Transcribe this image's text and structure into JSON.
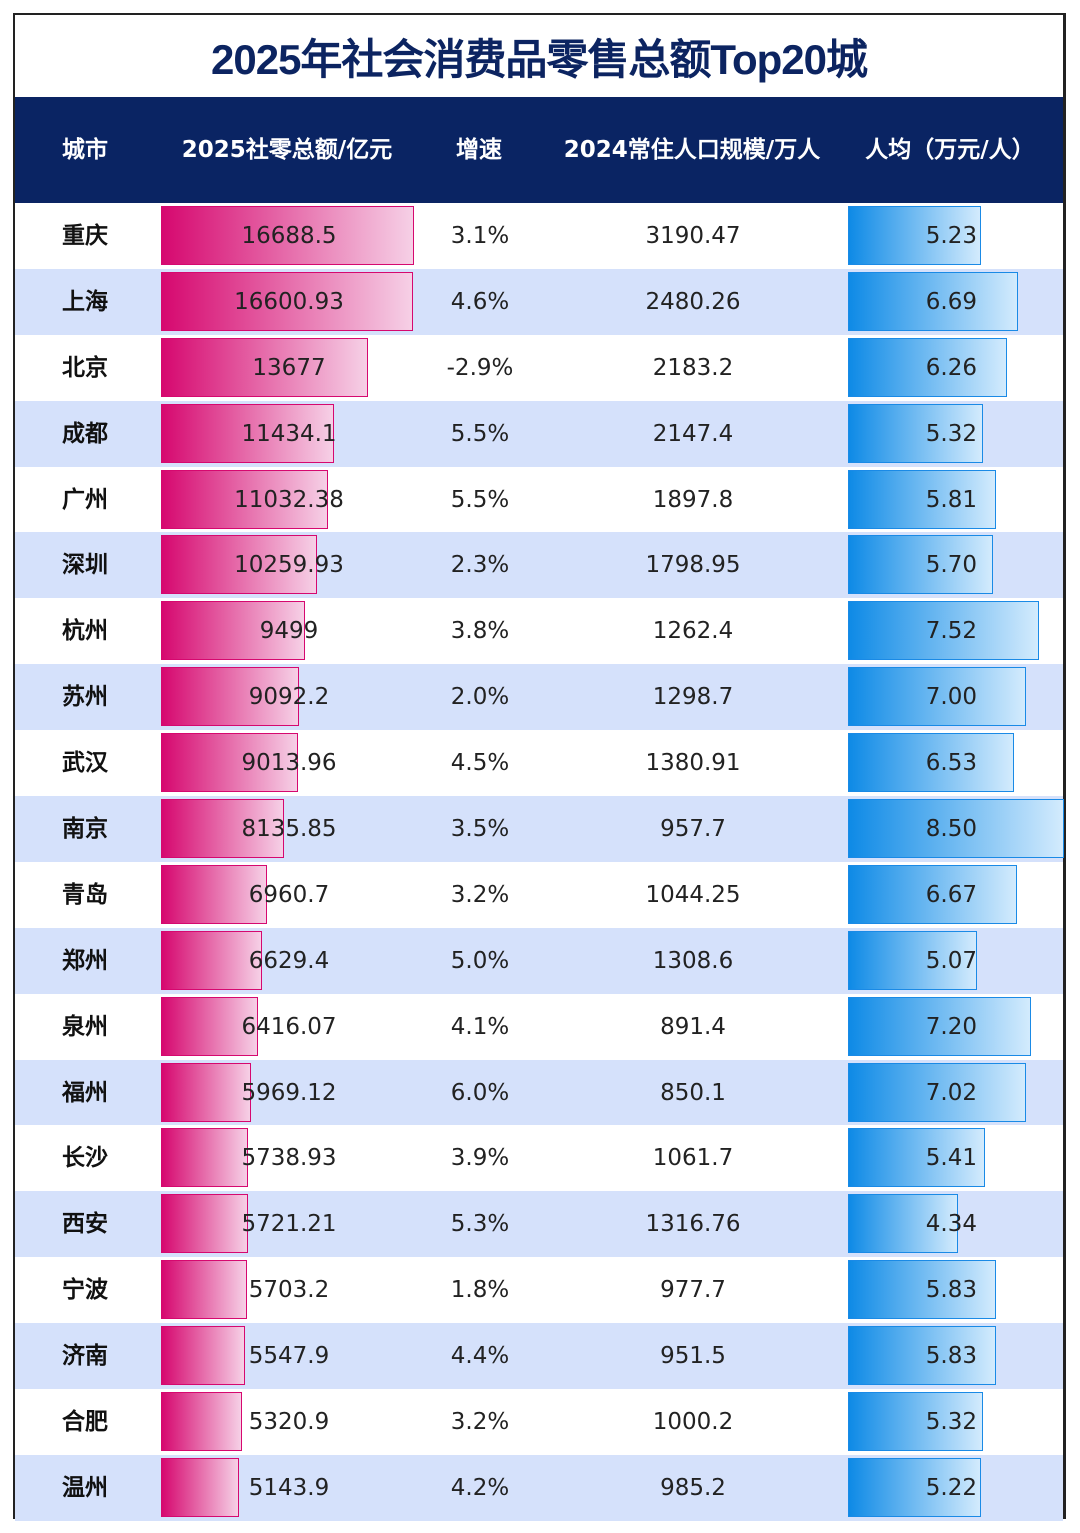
{
  "chart_data": {
    "type": "table",
    "title": "2025年社会消费品零售总额Top20城",
    "columns": [
      "城市",
      "2025社零总额/亿元",
      "增速",
      "2024常住人口规模/万人",
      "人均（万元/人）"
    ],
    "rows": [
      {
        "city": "重庆",
        "retail": "16688.5",
        "growth": "3.1%",
        "population": "3190.47",
        "per_capita": "5.23"
      },
      {
        "city": "上海",
        "retail": "16600.93",
        "growth": "4.6%",
        "population": "2480.26",
        "per_capita": "6.69"
      },
      {
        "city": "北京",
        "retail": "13677",
        "growth": "-2.9%",
        "population": "2183.2",
        "per_capita": "6.26"
      },
      {
        "city": "成都",
        "retail": "11434.1",
        "growth": "5.5%",
        "population": "2147.4",
        "per_capita": "5.32"
      },
      {
        "city": "广州",
        "retail": "11032.38",
        "growth": "5.5%",
        "population": "1897.8",
        "per_capita": "5.81"
      },
      {
        "city": "深圳",
        "retail": "10259.93",
        "growth": "2.3%",
        "population": "1798.95",
        "per_capita": "5.70"
      },
      {
        "city": "杭州",
        "retail": "9499",
        "growth": "3.8%",
        "population": "1262.4",
        "per_capita": "7.52"
      },
      {
        "city": "苏州",
        "retail": "9092.2",
        "growth": "2.0%",
        "population": "1298.7",
        "per_capita": "7.00"
      },
      {
        "city": "武汉",
        "retail": "9013.96",
        "growth": "4.5%",
        "population": "1380.91",
        "per_capita": "6.53"
      },
      {
        "city": "南京",
        "retail": "8135.85",
        "growth": "3.5%",
        "population": "957.7",
        "per_capita": "8.50"
      },
      {
        "city": "青岛",
        "retail": "6960.7",
        "growth": "3.2%",
        "population": "1044.25",
        "per_capita": "6.67"
      },
      {
        "city": "郑州",
        "retail": "6629.4",
        "growth": "5.0%",
        "population": "1308.6",
        "per_capita": "5.07"
      },
      {
        "city": "泉州",
        "retail": "6416.07",
        "growth": "4.1%",
        "population": "891.4",
        "per_capita": "7.20"
      },
      {
        "city": "福州",
        "retail": "5969.12",
        "growth": "6.0%",
        "population": "850.1",
        "per_capita": "7.02"
      },
      {
        "city": "长沙",
        "retail": "5738.93",
        "growth": "3.9%",
        "population": "1061.7",
        "per_capita": "5.41"
      },
      {
        "city": "西安",
        "retail": "5721.21",
        "growth": "5.3%",
        "population": "1316.76",
        "per_capita": "4.34"
      },
      {
        "city": "宁波",
        "retail": "5703.2",
        "growth": "1.8%",
        "population": "977.7",
        "per_capita": "5.83"
      },
      {
        "city": "济南",
        "retail": "5547.9",
        "growth": "4.4%",
        "population": "951.5",
        "per_capita": "5.83"
      },
      {
        "city": "合肥",
        "retail": "5320.9",
        "growth": "3.2%",
        "population": "1000.2",
        "per_capita": "5.32"
      },
      {
        "city": "温州",
        "retail": "5143.9",
        "growth": "4.2%",
        "population": "985.2",
        "per_capita": "5.22"
      }
    ],
    "colors": {
      "header_bg": "#0a2463",
      "title": "#0c2461",
      "retail_bar": "#d6086f",
      "per_capita_bar": "#0e8ae6",
      "alt_row": "#d5e1fb"
    }
  }
}
